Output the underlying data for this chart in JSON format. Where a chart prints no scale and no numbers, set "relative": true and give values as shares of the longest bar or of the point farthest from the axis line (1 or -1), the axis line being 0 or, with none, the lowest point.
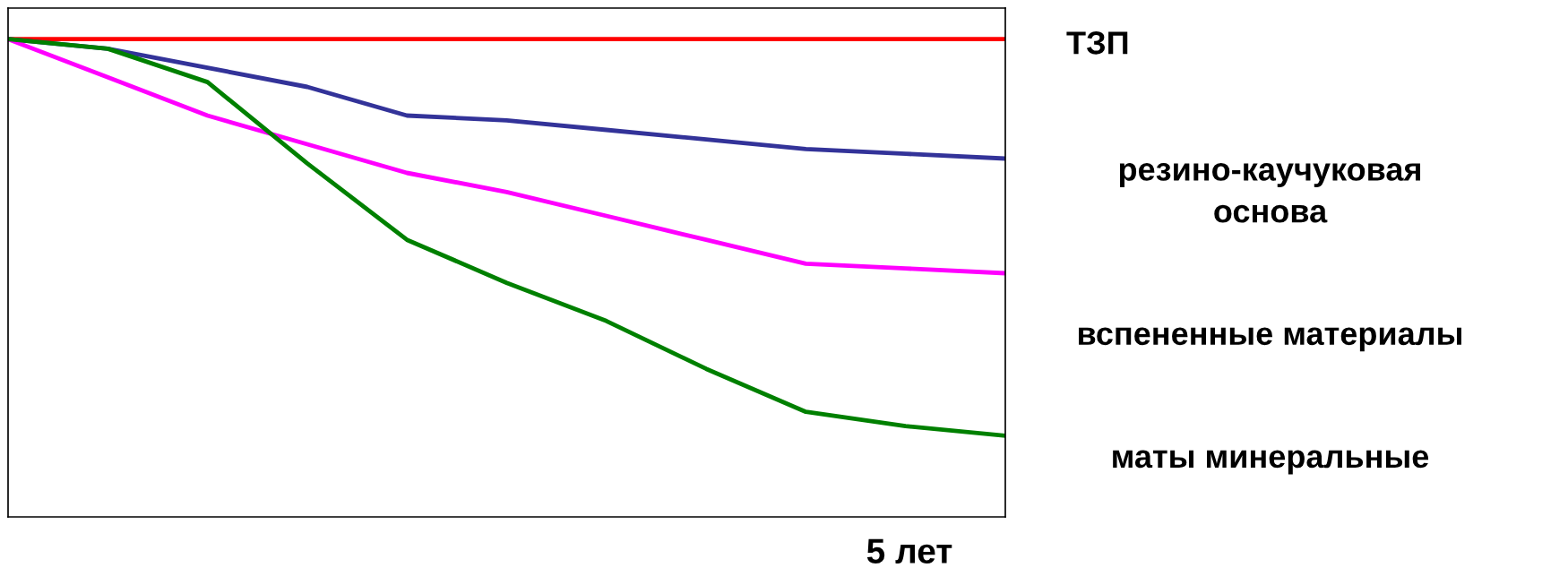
{
  "chart_data": {
    "type": "line",
    "relative": true,
    "xlabel": "5 лет",
    "categories": [
      null,
      null,
      null,
      null,
      null,
      null,
      null,
      null,
      null,
      null,
      null
    ],
    "grid": false,
    "legend": false,
    "marker": "none",
    "line_style": "solid",
    "series": [
      {
        "name": "ТЗП",
        "color": "#ff0000",
        "values": [
          1,
          1,
          1,
          1,
          1,
          1,
          1,
          1,
          1,
          1,
          1
        ]
      },
      {
        "name": "резино-каучуковая\nоснова",
        "color": "#333399",
        "values": [
          1,
          0.98,
          0.94,
          0.9,
          0.84,
          0.83,
          0.81,
          0.79,
          0.77,
          0.76,
          0.75
        ]
      },
      {
        "name": "вспененные материалы",
        "color": "#ff00ff",
        "values": [
          1,
          0.92,
          0.84,
          0.78,
          0.72,
          0.68,
          0.63,
          0.58,
          0.53,
          0.52,
          0.51
        ]
      },
      {
        "name": "маты минеральные",
        "color": "#008000",
        "values": [
          1,
          0.98,
          0.91,
          0.74,
          0.58,
          0.49,
          0.41,
          0.31,
          0.22,
          0.19,
          0.17
        ]
      }
    ]
  }
}
